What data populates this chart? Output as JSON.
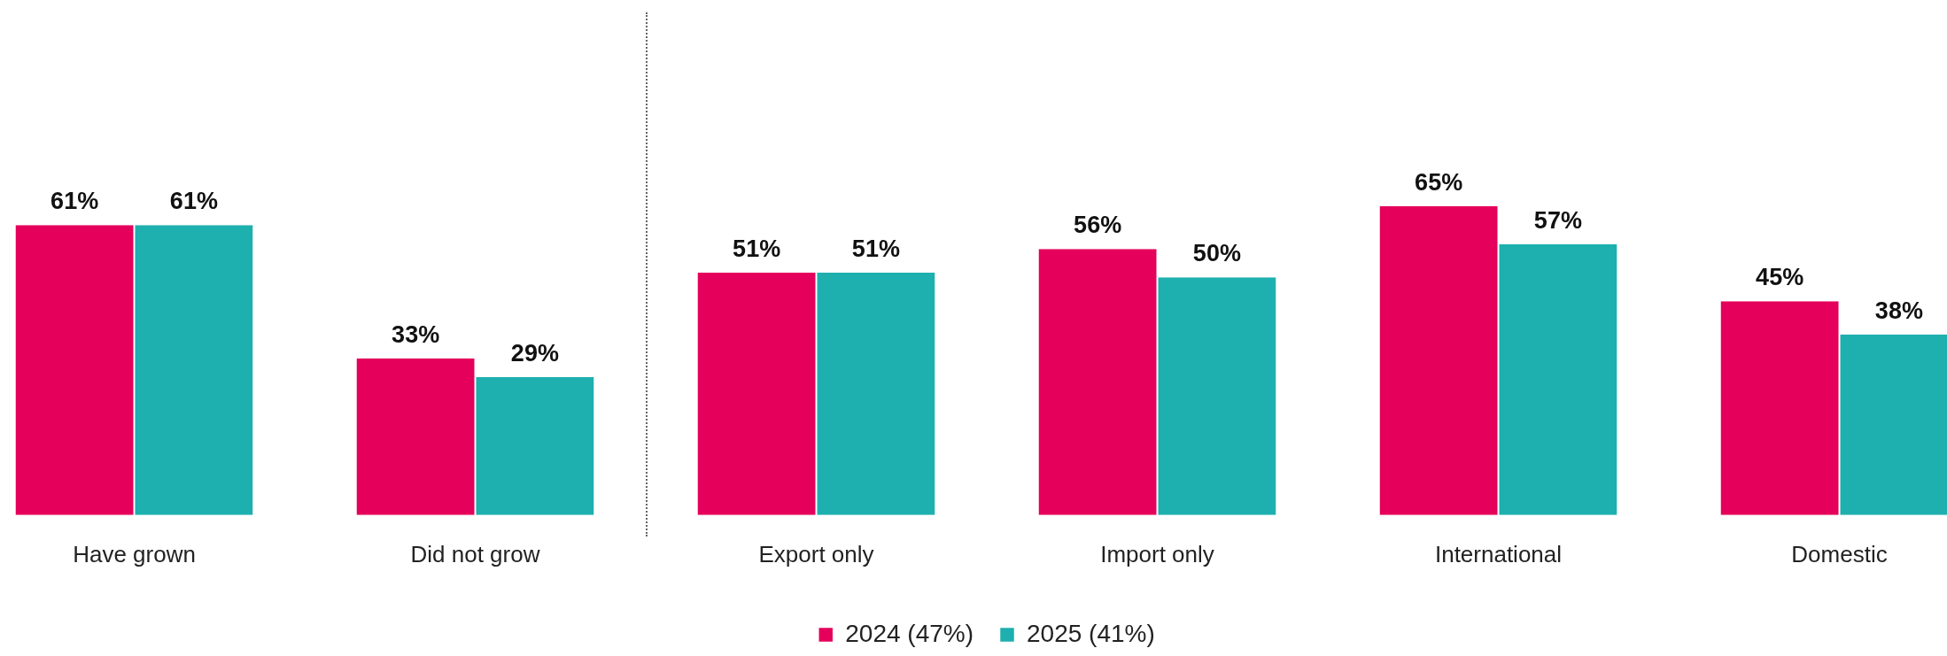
{
  "chart_data": {
    "type": "bar",
    "categories": [
      "Have grown",
      "Did not grow",
      "Export only",
      "Import only",
      "International",
      "Domestic"
    ],
    "series": [
      {
        "name": "2024 (47%)",
        "color": "#e4005b",
        "values": [
          61,
          33,
          51,
          56,
          65,
          45
        ],
        "value_labels": [
          "61%",
          "33%",
          "51%",
          "56%",
          "65%",
          "45%"
        ]
      },
      {
        "name": "2025 (41%)",
        "color": "#1eafaf",
        "values": [
          61,
          29,
          51,
          50,
          57,
          38
        ],
        "value_labels": [
          "61%",
          "29%",
          "51%",
          "50%",
          "57%",
          "38%"
        ]
      }
    ],
    "legend": "bottom",
    "grid": false,
    "tick_labels": "x"
  }
}
